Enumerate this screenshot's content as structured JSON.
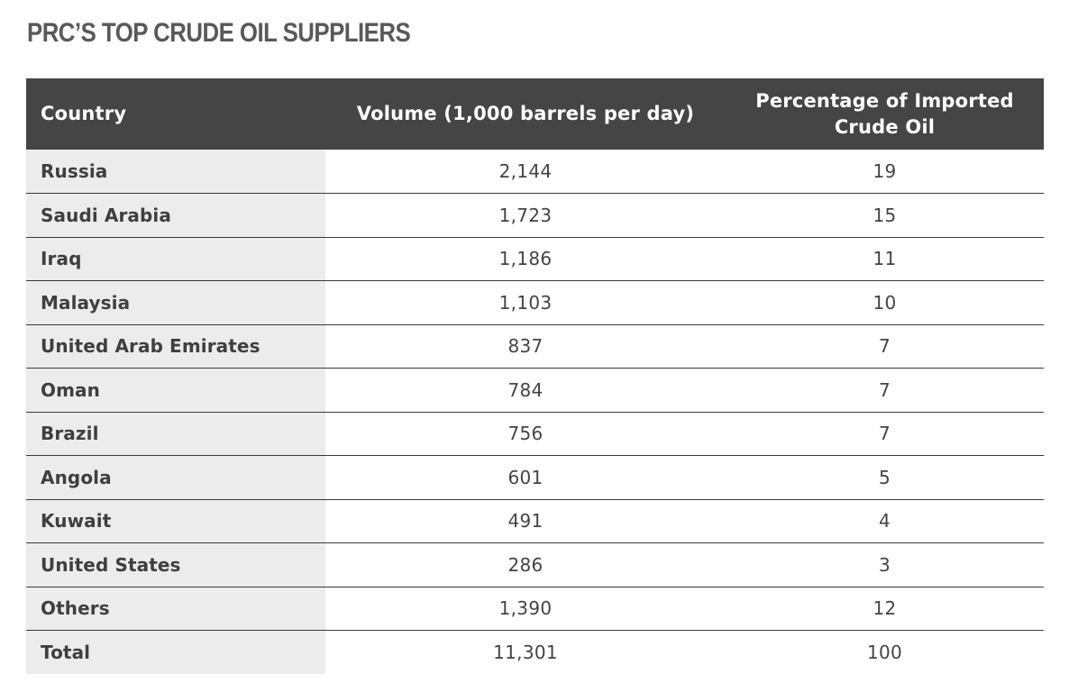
{
  "title": "PRC’S TOP CRUDE OIL SUPPLIERS",
  "chart_data": {
    "type": "table",
    "title": "PRC’S TOP CRUDE OIL SUPPLIERS",
    "columns": [
      "Country",
      "Volume (1,000 barrels per day)",
      "Percentage of Imported Crude Oil"
    ],
    "rows": [
      {
        "country": "Russia",
        "volume": "2,144",
        "percentage": "19"
      },
      {
        "country": "Saudi Arabia",
        "volume": "1,723",
        "percentage": "15"
      },
      {
        "country": "Iraq",
        "volume": "1,186",
        "percentage": "11"
      },
      {
        "country": "Malaysia",
        "volume": "1,103",
        "percentage": "10"
      },
      {
        "country": "United Arab Emirates",
        "volume": "837",
        "percentage": "7"
      },
      {
        "country": "Oman",
        "volume": "784",
        "percentage": "7"
      },
      {
        "country": "Brazil",
        "volume": "756",
        "percentage": "7"
      },
      {
        "country": "Angola",
        "volume": "601",
        "percentage": "5"
      },
      {
        "country": "Kuwait",
        "volume": "491",
        "percentage": "4"
      },
      {
        "country": "United States",
        "volume": "286",
        "percentage": "3"
      },
      {
        "country": "Others",
        "volume": "1,390",
        "percentage": "12"
      },
      {
        "country": "Total",
        "volume": "11,301",
        "percentage": "100"
      }
    ]
  },
  "colors": {
    "header_background": "#454545",
    "header_text": "#ffffff",
    "country_column_background": "#ececec",
    "title_text": "#595959",
    "row_divider": "#3a3a3a"
  }
}
